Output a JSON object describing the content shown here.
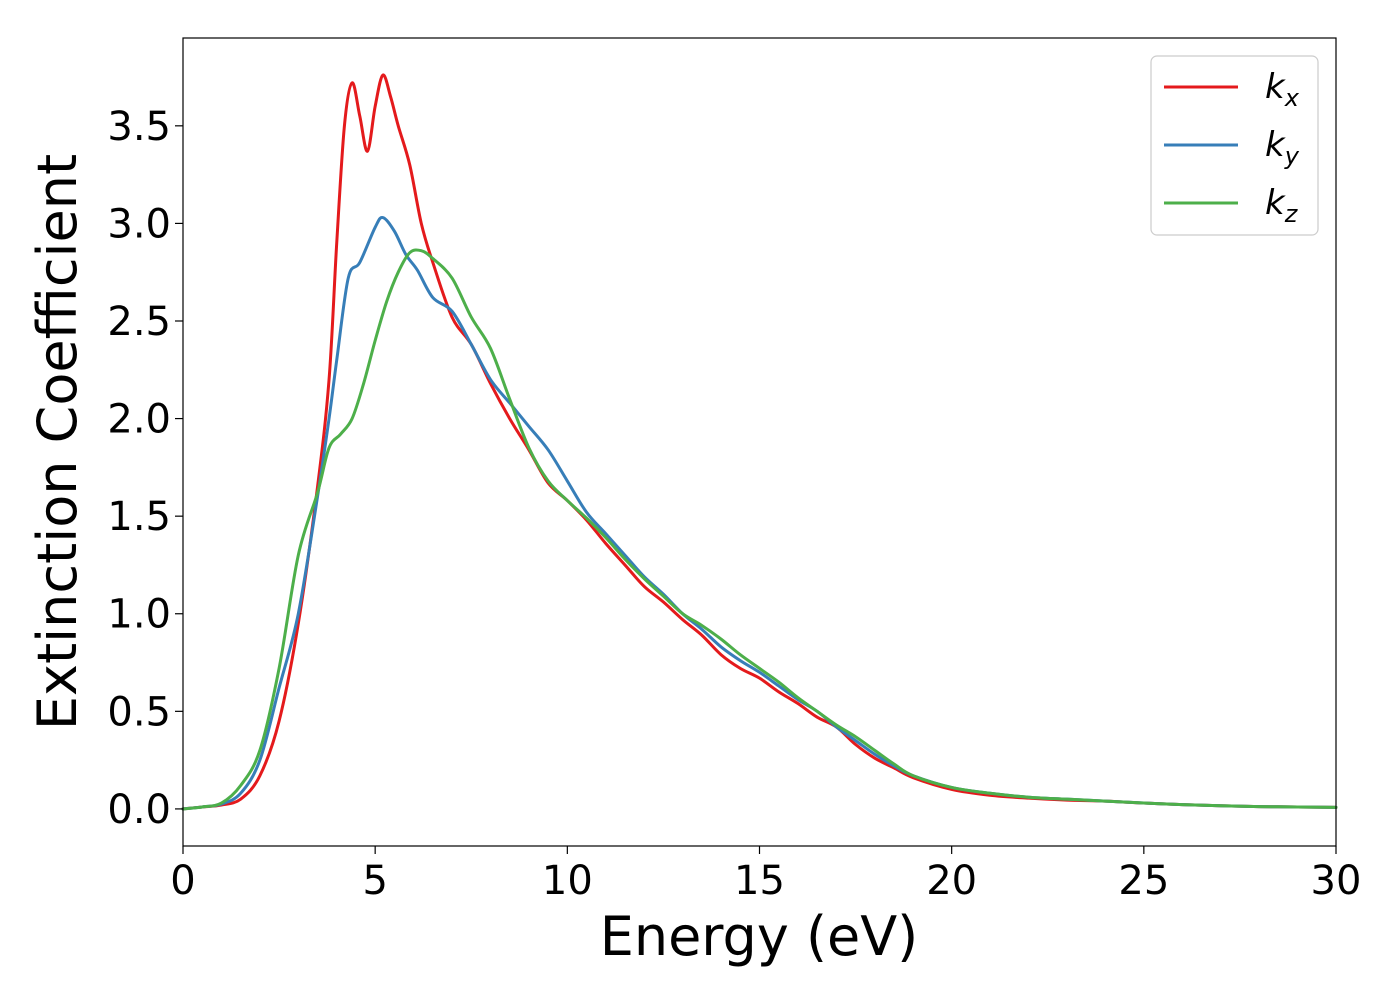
{
  "chart_data": {
    "type": "line",
    "xlabel": "Energy (eV)",
    "ylabel": "Extinction Coefficient",
    "xlim": [
      0,
      30
    ],
    "ylim": [
      -0.19,
      3.95
    ],
    "xticks": [
      0,
      5,
      10,
      15,
      20,
      25,
      30
    ],
    "xtick_labels": [
      "0",
      "5",
      "10",
      "15",
      "20",
      "25",
      "30"
    ],
    "yticks": [
      0.0,
      0.5,
      1.0,
      1.5,
      2.0,
      2.5,
      3.0,
      3.5
    ],
    "ytick_labels": [
      "0.0",
      "0.5",
      "1.0",
      "1.5",
      "2.0",
      "2.5",
      "3.0",
      "3.5"
    ],
    "grid": false,
    "legend_position": "top-right",
    "series": [
      {
        "name": "k",
        "subscript": "x",
        "color": "#e41a1c",
        "points": [
          [
            0,
            0
          ],
          [
            0.5,
            0.01
          ],
          [
            1,
            0.02
          ],
          [
            1.5,
            0.05
          ],
          [
            2,
            0.17
          ],
          [
            2.5,
            0.45
          ],
          [
            3,
            0.95
          ],
          [
            3.5,
            1.65
          ],
          [
            3.8,
            2.2
          ],
          [
            4,
            2.9
          ],
          [
            4.2,
            3.5
          ],
          [
            4.4,
            3.72
          ],
          [
            4.6,
            3.55
          ],
          [
            4.8,
            3.37
          ],
          [
            5,
            3.6
          ],
          [
            5.2,
            3.76
          ],
          [
            5.4,
            3.65
          ],
          [
            5.6,
            3.5
          ],
          [
            5.9,
            3.3
          ],
          [
            6.2,
            3.0
          ],
          [
            6.5,
            2.8
          ],
          [
            7,
            2.52
          ],
          [
            7.5,
            2.38
          ],
          [
            8,
            2.18
          ],
          [
            8.5,
            2.0
          ],
          [
            9,
            1.84
          ],
          [
            9.5,
            1.67
          ],
          [
            10,
            1.58
          ],
          [
            10.5,
            1.48
          ],
          [
            11,
            1.36
          ],
          [
            11.5,
            1.25
          ],
          [
            12,
            1.14
          ],
          [
            12.5,
            1.06
          ],
          [
            13,
            0.97
          ],
          [
            13.5,
            0.89
          ],
          [
            14,
            0.79
          ],
          [
            14.5,
            0.72
          ],
          [
            15,
            0.67
          ],
          [
            15.5,
            0.6
          ],
          [
            16,
            0.54
          ],
          [
            16.5,
            0.47
          ],
          [
            17,
            0.42
          ],
          [
            17.5,
            0.33
          ],
          [
            18,
            0.26
          ],
          [
            18.5,
            0.21
          ],
          [
            19,
            0.16
          ],
          [
            20,
            0.1
          ],
          [
            21,
            0.07
          ],
          [
            22,
            0.055
          ],
          [
            23,
            0.045
          ],
          [
            24,
            0.04
          ],
          [
            25,
            0.03
          ],
          [
            26,
            0.022
          ],
          [
            27,
            0.016
          ],
          [
            28,
            0.012
          ],
          [
            29,
            0.01
          ],
          [
            30,
            0.008
          ]
        ]
      },
      {
        "name": "k",
        "subscript": "y",
        "color": "#377eb8",
        "points": [
          [
            0,
            0
          ],
          [
            0.5,
            0.01
          ],
          [
            1,
            0.025
          ],
          [
            1.5,
            0.08
          ],
          [
            2,
            0.25
          ],
          [
            2.5,
            0.62
          ],
          [
            3,
            1.0
          ],
          [
            3.5,
            1.6
          ],
          [
            3.8,
            2.0
          ],
          [
            4,
            2.3
          ],
          [
            4.3,
            2.72
          ],
          [
            4.6,
            2.8
          ],
          [
            5,
            2.98
          ],
          [
            5.2,
            3.03
          ],
          [
            5.5,
            2.96
          ],
          [
            5.8,
            2.84
          ],
          [
            6.1,
            2.76
          ],
          [
            6.5,
            2.62
          ],
          [
            7,
            2.55
          ],
          [
            7.5,
            2.38
          ],
          [
            8,
            2.2
          ],
          [
            8.5,
            2.08
          ],
          [
            9,
            1.96
          ],
          [
            9.5,
            1.84
          ],
          [
            10,
            1.68
          ],
          [
            10.5,
            1.52
          ],
          [
            11,
            1.41
          ],
          [
            11.5,
            1.3
          ],
          [
            12,
            1.19
          ],
          [
            12.5,
            1.1
          ],
          [
            13,
            1.0
          ],
          [
            13.5,
            0.92
          ],
          [
            14,
            0.83
          ],
          [
            14.5,
            0.76
          ],
          [
            15,
            0.7
          ],
          [
            15.5,
            0.63
          ],
          [
            16,
            0.56
          ],
          [
            16.5,
            0.5
          ],
          [
            17,
            0.42
          ],
          [
            17.5,
            0.35
          ],
          [
            18,
            0.28
          ],
          [
            18.5,
            0.22
          ],
          [
            19,
            0.17
          ],
          [
            20,
            0.11
          ],
          [
            21,
            0.08
          ],
          [
            22,
            0.06
          ],
          [
            23,
            0.05
          ],
          [
            24,
            0.04
          ],
          [
            25,
            0.03
          ],
          [
            26,
            0.022
          ],
          [
            27,
            0.016
          ],
          [
            28,
            0.012
          ],
          [
            29,
            0.01
          ],
          [
            30,
            0.008
          ]
        ]
      },
      {
        "name": "k",
        "subscript": "z",
        "color": "#4daf4a",
        "points": [
          [
            0,
            0
          ],
          [
            0.5,
            0.01
          ],
          [
            1,
            0.03
          ],
          [
            1.5,
            0.12
          ],
          [
            2,
            0.3
          ],
          [
            2.5,
            0.72
          ],
          [
            3,
            1.3
          ],
          [
            3.5,
            1.62
          ],
          [
            3.8,
            1.85
          ],
          [
            4.1,
            1.92
          ],
          [
            4.4,
            2.0
          ],
          [
            4.7,
            2.18
          ],
          [
            5,
            2.4
          ],
          [
            5.3,
            2.6
          ],
          [
            5.6,
            2.75
          ],
          [
            5.9,
            2.85
          ],
          [
            6.2,
            2.86
          ],
          [
            6.5,
            2.82
          ],
          [
            7,
            2.72
          ],
          [
            7.5,
            2.52
          ],
          [
            8,
            2.36
          ],
          [
            8.5,
            2.1
          ],
          [
            9,
            1.85
          ],
          [
            9.5,
            1.68
          ],
          [
            10,
            1.58
          ],
          [
            10.5,
            1.49
          ],
          [
            11,
            1.39
          ],
          [
            11.5,
            1.28
          ],
          [
            12,
            1.18
          ],
          [
            12.5,
            1.09
          ],
          [
            13,
            1.0
          ],
          [
            13.5,
            0.94
          ],
          [
            14,
            0.87
          ],
          [
            14.5,
            0.79
          ],
          [
            15,
            0.72
          ],
          [
            15.5,
            0.65
          ],
          [
            16,
            0.57
          ],
          [
            16.5,
            0.5
          ],
          [
            17,
            0.43
          ],
          [
            17.5,
            0.37
          ],
          [
            18,
            0.3
          ],
          [
            18.5,
            0.23
          ],
          [
            19,
            0.17
          ],
          [
            20,
            0.11
          ],
          [
            21,
            0.08
          ],
          [
            22,
            0.06
          ],
          [
            23,
            0.05
          ],
          [
            24,
            0.04
          ],
          [
            25,
            0.03
          ],
          [
            26,
            0.022
          ],
          [
            27,
            0.016
          ],
          [
            28,
            0.012
          ],
          [
            29,
            0.01
          ],
          [
            30,
            0.008
          ]
        ]
      }
    ]
  }
}
